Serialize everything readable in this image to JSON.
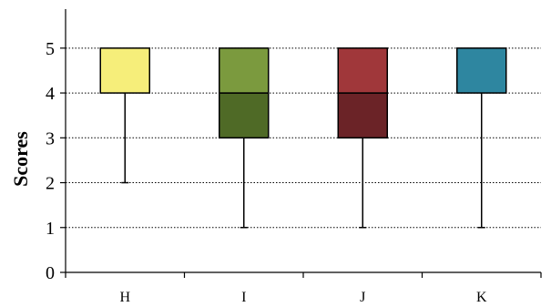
{
  "chart_data": {
    "type": "boxplot",
    "title": "",
    "xlabel": "",
    "ylabel": "Scores",
    "ylim": [
      0,
      5
    ],
    "yticks": [
      0,
      1,
      2,
      3,
      4,
      5
    ],
    "grid": "horizontal dotted",
    "categories": [
      "H",
      "I",
      "J",
      "K"
    ],
    "boxes": [
      {
        "category": "H",
        "min": 2,
        "q1": 4,
        "median": 5,
        "q3": 5,
        "max": 5,
        "upper_color": "#f6ee7a",
        "lower_color": "#f6ee7a"
      },
      {
        "category": "I",
        "min": 1,
        "q1": 3,
        "median": 4,
        "q3": 5,
        "max": 5,
        "upper_color": "#7b9a3e",
        "lower_color": "#4f6a26"
      },
      {
        "category": "J",
        "min": 1,
        "q1": 3,
        "median": 4,
        "q3": 5,
        "max": 5,
        "upper_color": "#a0373a",
        "lower_color": "#6b2327"
      },
      {
        "category": "K",
        "min": 1,
        "q1": 4,
        "median": 5,
        "q3": 5,
        "max": 5,
        "upper_color": "#2e86a0",
        "lower_color": "#2e86a0"
      }
    ]
  }
}
